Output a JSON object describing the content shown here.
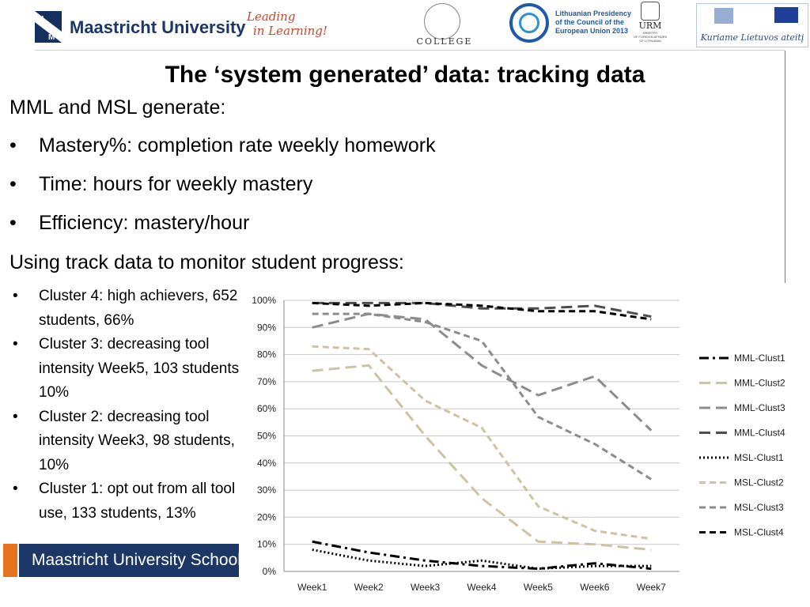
{
  "header": {
    "university": "Maastricht University",
    "slogan_line1": "Leading",
    "slogan_line2": "in Learning!",
    "vbc_name": "COLLEGE",
    "lt_presidency": [
      "Lithuanian Presidency",
      "of the Council of the",
      "European Union 2013"
    ],
    "urm_name": "URM",
    "urm_sub": [
      "MINISTRY",
      "OF FOREIGN AFFAIRS",
      "OF LITHUANIA"
    ],
    "eu_motto": "Kuriame Lietuvos ateitį",
    "brand_color": "#1c3766",
    "slogan_color": "#d1452a"
  },
  "slide": {
    "title": "The ‘system generated’ data: tracking data",
    "intro": "MML and MSL generate:",
    "bullets": [
      "Mastery%: completion rate weekly homework",
      "Time: hours for weekly mastery",
      "Efficiency: mastery/hour"
    ],
    "monitor": "Using track data to monitor student progress:",
    "clusters": [
      "Cluster 4: high achievers, 652 students, 66%",
      "Cluster 3: decreasing tool intensity Week5, 103 students, 10%",
      "Cluster 2: decreasing tool intensity Week3, 98 students, 10%",
      "Cluster 1: opt out from all tool use, 133 students, 13%"
    ]
  },
  "footer": {
    "text": "Maastricht University School of Business and Economics",
    "accent_color": "#e8731f"
  },
  "chart_data": {
    "type": "line",
    "x": [
      "Week1",
      "Week2",
      "Week3",
      "Week4",
      "Week5",
      "Week6",
      "Week7"
    ],
    "ylim": [
      0,
      100
    ],
    "yticks": [
      "0%",
      "10%",
      "20%",
      "30%",
      "40%",
      "50%",
      "60%",
      "70%",
      "80%",
      "90%",
      "100%"
    ],
    "grid": true,
    "legend_position": "right",
    "series": [
      {
        "name": "MML-Clust1",
        "values": [
          11,
          7,
          4,
          2,
          1,
          3,
          1
        ],
        "color": "#000000",
        "dash": "dashdot",
        "width": 3
      },
      {
        "name": "MML-Clust2",
        "values": [
          74,
          76,
          50,
          27,
          11,
          10,
          8
        ],
        "color": "#cfc2a0",
        "dash": "longdash",
        "width": 3
      },
      {
        "name": "MML-Clust3",
        "values": [
          90,
          95,
          93,
          76,
          65,
          72,
          52
        ],
        "color": "#8c8c8c",
        "dash": "longdash",
        "width": 3
      },
      {
        "name": "MML-Clust4",
        "values": [
          99,
          99,
          99,
          97,
          97,
          98,
          94
        ],
        "color": "#4d4d4d",
        "dash": "longdash",
        "width": 3
      },
      {
        "name": "MSL-Clust1",
        "values": [
          8,
          4,
          2,
          4,
          1,
          2,
          2
        ],
        "color": "#000000",
        "dash": "dot",
        "width": 3
      },
      {
        "name": "MSL-Clust2",
        "values": [
          83,
          82,
          63,
          53,
          24,
          15,
          12
        ],
        "color": "#cfc2a0",
        "dash": "dash",
        "width": 3
      },
      {
        "name": "MSL-Clust3",
        "values": [
          95,
          95,
          92,
          85,
          57,
          47,
          34
        ],
        "color": "#8c8c8c",
        "dash": "dash",
        "width": 3
      },
      {
        "name": "MSL-Clust4",
        "values": [
          99,
          98,
          99,
          98,
          96,
          96,
          93
        ],
        "color": "#000000",
        "dash": "dash",
        "width": 3
      }
    ]
  }
}
